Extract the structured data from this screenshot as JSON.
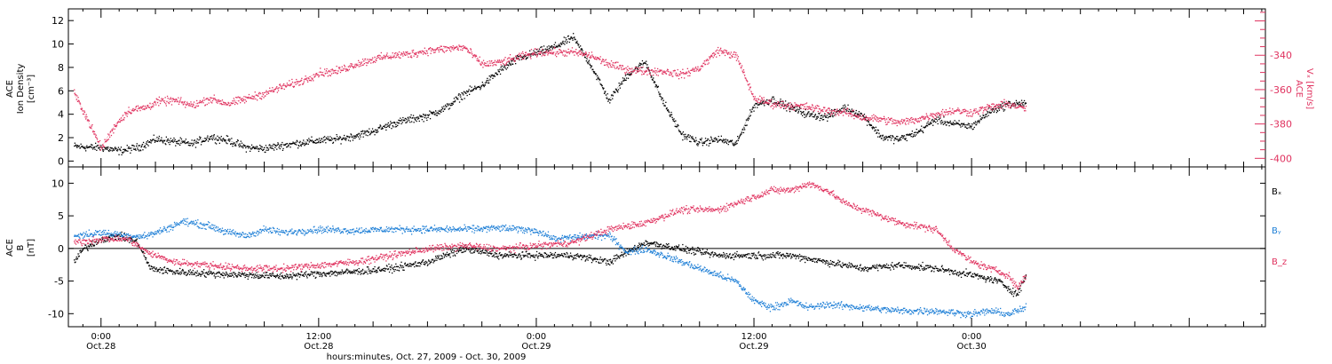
{
  "colors": {
    "black": "#000000",
    "pink": "#e0325f",
    "blue": "#1e7fd6",
    "axis": "#000000"
  },
  "chart_data": [
    {
      "type": "scatter",
      "panel": "top",
      "ylabel_left": [
        "ACE",
        "Ion Density",
        "[cm⁻³]"
      ],
      "ylabel_right": [
        "ACE",
        "Vₓ [km/s]"
      ],
      "ylim_left": [
        -0.5,
        13
      ],
      "yticks_left": [
        0,
        2,
        4,
        6,
        8,
        10,
        12
      ],
      "ylim_right": [
        -405,
        -313
      ],
      "yticks_right": [
        -400,
        -380,
        -360,
        -340
      ],
      "grid": false,
      "series": [
        {
          "key": "density",
          "color": "black",
          "points": [
            [
              -1.5,
              1.3
            ],
            [
              -0.5,
              1.2
            ],
            [
              0,
              1.2
            ],
            [
              1,
              0.9
            ],
            [
              2,
              1.2
            ],
            [
              3,
              1.9
            ],
            [
              4,
              1.7
            ],
            [
              5,
              1.5
            ],
            [
              6,
              2.1
            ],
            [
              7,
              1.8
            ],
            [
              8,
              1.2
            ],
            [
              9,
              1.1
            ],
            [
              10,
              1.4
            ],
            [
              11,
              1.6
            ],
            [
              12,
              1.8
            ],
            [
              13,
              1.9
            ],
            [
              14,
              2.2
            ],
            [
              15,
              2.6
            ],
            [
              16,
              3.2
            ],
            [
              17,
              3.6
            ],
            [
              18,
              3.9
            ],
            [
              19,
              4.6
            ],
            [
              20,
              5.8
            ],
            [
              21,
              6.5
            ],
            [
              22,
              7.8
            ],
            [
              23,
              8.8
            ],
            [
              24,
              9.3
            ],
            [
              25,
              9.8
            ],
            [
              26,
              10.6
            ],
            [
              27,
              8.2
            ],
            [
              28,
              5.2
            ],
            [
              29,
              7.4
            ],
            [
              30,
              8.5
            ],
            [
              31,
              5.0
            ],
            [
              32,
              2.3
            ],
            [
              33,
              1.6
            ],
            [
              34,
              1.9
            ],
            [
              35,
              1.5
            ],
            [
              36,
              4.8
            ],
            [
              37,
              5.3
            ],
            [
              38,
              4.6
            ],
            [
              39,
              4.0
            ],
            [
              40,
              3.8
            ],
            [
              41,
              4.6
            ],
            [
              42,
              3.9
            ],
            [
              43,
              2.1
            ],
            [
              44,
              1.9
            ],
            [
              45,
              2.5
            ],
            [
              46,
              3.6
            ],
            [
              47,
              3.2
            ],
            [
              48,
              3.0
            ],
            [
              49,
              4.3
            ],
            [
              50,
              4.9
            ],
            [
              51,
              5.0
            ]
          ]
        },
        {
          "key": "vx",
          "color": "pink",
          "points": [
            [
              -1.5,
              -362
            ],
            [
              -1,
              -372
            ],
            [
              0,
              -394
            ],
            [
              0.8,
              -380
            ],
            [
              1.5,
              -372
            ],
            [
              2.5,
              -370
            ],
            [
              3,
              -367
            ],
            [
              4,
              -366
            ],
            [
              5,
              -369
            ],
            [
              6,
              -365
            ],
            [
              7,
              -368
            ],
            [
              8,
              -365
            ],
            [
              9,
              -362
            ],
            [
              10,
              -358
            ],
            [
              11,
              -355
            ],
            [
              12,
              -350
            ],
            [
              13,
              -349
            ],
            [
              14,
              -345
            ],
            [
              15,
              -342
            ],
            [
              16,
              -340
            ],
            [
              17,
              -339
            ],
            [
              18,
              -337
            ],
            [
              19,
              -336
            ],
            [
              20,
              -335
            ],
            [
              21,
              -345
            ],
            [
              22,
              -344
            ],
            [
              23,
              -341
            ],
            [
              24,
              -338
            ],
            [
              25,
              -338
            ],
            [
              26,
              -338
            ],
            [
              27,
              -340
            ],
            [
              28,
              -345
            ],
            [
              29,
              -348
            ],
            [
              30,
              -349
            ],
            [
              31,
              -349
            ],
            [
              32,
              -351
            ],
            [
              33,
              -347
            ],
            [
              34,
              -337
            ],
            [
              35,
              -340
            ],
            [
              36,
              -365
            ],
            [
              37,
              -368
            ],
            [
              38,
              -369
            ],
            [
              39,
              -370
            ],
            [
              40,
              -372
            ],
            [
              41,
              -373
            ],
            [
              42,
              -376
            ],
            [
              43,
              -377
            ],
            [
              44,
              -379
            ],
            [
              45,
              -377
            ],
            [
              46,
              -374
            ],
            [
              47,
              -372
            ],
            [
              48,
              -373
            ],
            [
              49,
              -370
            ],
            [
              50,
              -368
            ],
            [
              51,
              -371
            ]
          ]
        }
      ]
    },
    {
      "type": "scatter",
      "panel": "bottom",
      "ylabel_left": [
        "ACE",
        "B",
        "[nT]"
      ],
      "ylim": [
        -12,
        12.5
      ],
      "yticks": [
        -10,
        -5,
        0,
        5,
        10
      ],
      "zero_line": true,
      "grid": false,
      "legend": [
        {
          "label": "Bₓ",
          "color": "black"
        },
        {
          "label": "Bᵧ",
          "color": "blue"
        },
        {
          "label": "B_z",
          "color": "pink"
        }
      ],
      "series": [
        {
          "key": "bx",
          "color": "black",
          "points": [
            [
              -1.5,
              -2
            ],
            [
              -1,
              0
            ],
            [
              0,
              1.5
            ],
            [
              1,
              2
            ],
            [
              2,
              1
            ],
            [
              2.7,
              -3
            ],
            [
              4,
              -3.5
            ],
            [
              6,
              -3.8
            ],
            [
              8,
              -4
            ],
            [
              10,
              -4.2
            ],
            [
              12,
              -3.8
            ],
            [
              14,
              -3.5
            ],
            [
              16,
              -3
            ],
            [
              18,
              -2
            ],
            [
              20,
              0
            ],
            [
              22,
              -1
            ],
            [
              24,
              -1
            ],
            [
              26,
              -1
            ],
            [
              28,
              -2
            ],
            [
              30,
              1
            ],
            [
              32,
              0
            ],
            [
              34,
              -1
            ],
            [
              36,
              -1
            ],
            [
              38,
              -1
            ],
            [
              40,
              -2
            ],
            [
              42,
              -3
            ],
            [
              44,
              -2.5
            ],
            [
              46,
              -3
            ],
            [
              48,
              -4
            ],
            [
              49.5,
              -5
            ],
            [
              50.5,
              -7
            ],
            [
              51,
              -4
            ]
          ]
        },
        {
          "key": "by",
          "color": "blue",
          "points": [
            [
              -1.5,
              2
            ],
            [
              0,
              2.5
            ],
            [
              1.5,
              2
            ],
            [
              2.5,
              2
            ],
            [
              3.5,
              3
            ],
            [
              4.5,
              4.2
            ],
            [
              6,
              3.5
            ],
            [
              7,
              2.5
            ],
            [
              8,
              2
            ],
            [
              9,
              3
            ],
            [
              10,
              2.5
            ],
            [
              12,
              3
            ],
            [
              14,
              2.8
            ],
            [
              16,
              3
            ],
            [
              18,
              3
            ],
            [
              20,
              3
            ],
            [
              22,
              3.2
            ],
            [
              24,
              2.8
            ],
            [
              25,
              1.5
            ],
            [
              27,
              2
            ],
            [
              28,
              2
            ],
            [
              29,
              -0.5
            ],
            [
              30,
              0
            ],
            [
              31,
              -1
            ],
            [
              32,
              -2
            ],
            [
              33,
              -3
            ],
            [
              34,
              -4
            ],
            [
              35,
              -5
            ],
            [
              36,
              -8
            ],
            [
              37,
              -9
            ],
            [
              38,
              -8
            ],
            [
              39,
              -9
            ],
            [
              40,
              -8.5
            ],
            [
              42,
              -9
            ],
            [
              44,
              -9.5
            ],
            [
              46,
              -9.5
            ],
            [
              48,
              -10
            ],
            [
              49,
              -9.5
            ],
            [
              50,
              -10
            ],
            [
              51,
              -9
            ]
          ]
        },
        {
          "key": "bz",
          "color": "pink",
          "points": [
            [
              -1.5,
              1
            ],
            [
              0,
              1.5
            ],
            [
              1.5,
              1.5
            ],
            [
              2.5,
              -0.5
            ],
            [
              4,
              -2
            ],
            [
              6,
              -2.5
            ],
            [
              8,
              -3
            ],
            [
              10,
              -3
            ],
            [
              12,
              -2.5
            ],
            [
              14,
              -2
            ],
            [
              16,
              -1
            ],
            [
              18,
              0
            ],
            [
              20,
              0.5
            ],
            [
              22,
              0
            ],
            [
              24,
              0.5
            ],
            [
              26,
              1
            ],
            [
              28,
              3
            ],
            [
              30,
              4
            ],
            [
              32,
              6
            ],
            [
              34,
              6
            ],
            [
              35,
              7
            ],
            [
              36,
              8
            ],
            [
              37,
              9
            ],
            [
              38,
              9
            ],
            [
              39,
              10
            ],
            [
              40,
              9
            ],
            [
              41,
              7
            ],
            [
              42,
              6
            ],
            [
              44,
              4
            ],
            [
              46,
              3
            ],
            [
              47,
              0
            ],
            [
              48,
              -2
            ],
            [
              49,
              -3
            ],
            [
              50,
              -4
            ],
            [
              50.5,
              -6
            ],
            [
              51,
              -4
            ]
          ]
        }
      ]
    }
  ],
  "x_axis": {
    "xlim": [
      -1.8,
      64.2
    ],
    "ticks": [
      {
        "hour": 0,
        "line1": "0:00",
        "line2": "Oct.28"
      },
      {
        "hour": 12,
        "line1": "12:00",
        "line2": "Oct.28"
      },
      {
        "hour": 24,
        "line1": "0:00",
        "line2": "Oct.29"
      },
      {
        "hour": 36,
        "line1": "12:00",
        "line2": "Oct.29"
      },
      {
        "hour": 48,
        "line1": "0:00",
        "line2": "Oct.30"
      }
    ],
    "xlabel": "hours:minutes, Oct. 27, 2009 - Oct. 30, 2009"
  }
}
